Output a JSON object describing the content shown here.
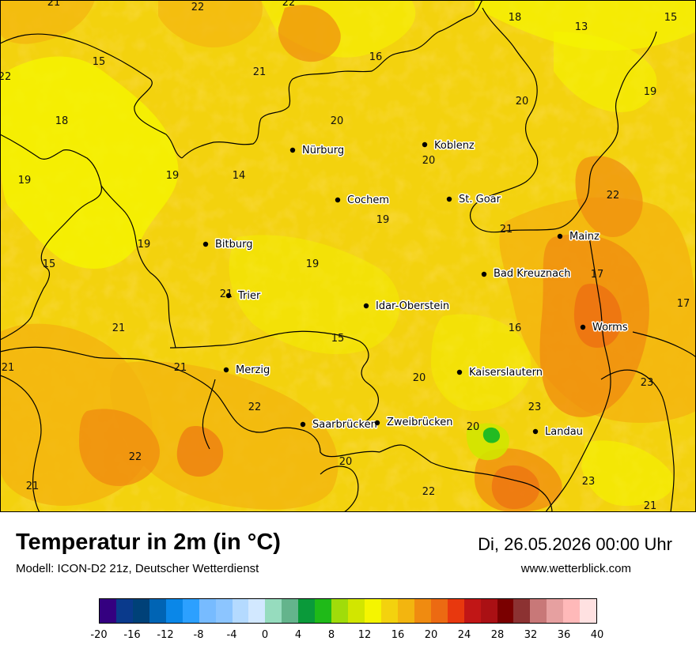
{
  "header": {
    "title": "Temperatur in 2m (in °C)",
    "model": "Modell: ICON-D2 21z, Deutscher Wetterdienst",
    "datetime": "Di, 26.05.2026 00:00 Uhr",
    "website": "www.wetterblick.com"
  },
  "colors": {
    "base_fill": "#f3d20e",
    "band_16_18": "#f5f500",
    "band_20_22": "#f3b50f",
    "band_22_24": "#f08b10",
    "band_24_26": "#ec6a12",
    "green_spot": "#22bb22",
    "border_line": "#000000"
  },
  "cities": [
    {
      "name": "Nürburg"
    },
    {
      "name": "Koblenz"
    },
    {
      "name": "Cochem"
    },
    {
      "name": "St. Goar"
    },
    {
      "name": "Bitburg"
    },
    {
      "name": "Mainz"
    },
    {
      "name": "Bad Kreuznach"
    },
    {
      "name": "Trier"
    },
    {
      "name": "Idar-Oberstein"
    },
    {
      "name": "Worms"
    },
    {
      "name": "Merzig"
    },
    {
      "name": "Kaiserslautern"
    },
    {
      "name": "Saarbrücken"
    },
    {
      "name": "Zweibrücken"
    },
    {
      "name": "Landau"
    }
  ],
  "values": [
    "21",
    "22",
    "22",
    "18",
    "15",
    "13",
    "15",
    "16",
    "22",
    "21",
    "20",
    "19",
    "18",
    "20",
    "19",
    "14",
    "19",
    "20",
    "22",
    "19",
    "21",
    "19",
    "19",
    "15",
    "17",
    "21",
    "17",
    "21",
    "15",
    "16",
    "21",
    "20",
    "23",
    "22",
    "23",
    "20",
    "22",
    "20",
    "21",
    "22",
    "23",
    "21"
  ],
  "legend": {
    "colors": [
      "#340080",
      "#0a3a8c",
      "#004178",
      "#0064b4",
      "#0a87e8",
      "#2ca0ff",
      "#77bbff",
      "#8cc5ff",
      "#b4daff",
      "#d2e8ff",
      "#96dcbe",
      "#64b48c",
      "#0a9a3a",
      "#1fba18",
      "#a0dc0a",
      "#d2e600",
      "#f5f500",
      "#f3d20e",
      "#f3b50f",
      "#f08b10",
      "#ec6a12",
      "#e8380e",
      "#c11616",
      "#aa1014",
      "#7a0000",
      "#8c3232",
      "#c87878",
      "#e6a0a0",
      "#ffb9b9",
      "#ffe1e1"
    ],
    "ticks": [
      "-20",
      "-16",
      "-12",
      "-8",
      "-4",
      "0",
      "4",
      "8",
      "12",
      "16",
      "20",
      "24",
      "28",
      "32",
      "36",
      "40"
    ]
  }
}
